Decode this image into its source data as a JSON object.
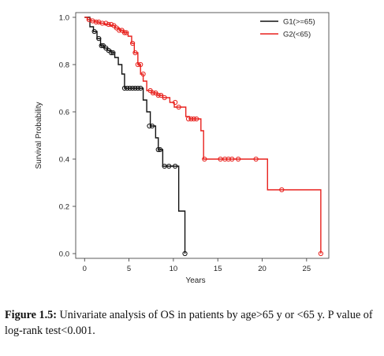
{
  "chart_data": {
    "type": "line",
    "xlabel": "Years",
    "ylabel": "Survival Probability",
    "xlim": [
      -1,
      27.5
    ],
    "ylim": [
      -0.02,
      1.02
    ],
    "xticks": [
      "0",
      "5",
      "10",
      "15",
      "20",
      "25"
    ],
    "xtick_values": [
      0,
      5,
      10,
      15,
      20,
      25
    ],
    "yticks": [
      "0.0",
      "0.2",
      "0.4",
      "0.6",
      "0.8",
      "1.0"
    ],
    "ytick_values": [
      0.0,
      0.2,
      0.4,
      0.6,
      0.8,
      1.0
    ],
    "legend_position": "top-right",
    "series": [
      {
        "name": "G1(>=65)",
        "color": "#111111",
        "steps": [
          [
            0,
            1.0
          ],
          [
            0.6,
            0.96
          ],
          [
            1.0,
            0.94
          ],
          [
            1.4,
            0.91
          ],
          [
            1.8,
            0.88
          ],
          [
            2.2,
            0.87
          ],
          [
            2.6,
            0.86
          ],
          [
            3.0,
            0.85
          ],
          [
            3.4,
            0.83
          ],
          [
            3.8,
            0.8
          ],
          [
            4.2,
            0.76
          ],
          [
            4.5,
            0.7
          ],
          [
            6.6,
            0.65
          ],
          [
            7.0,
            0.6
          ],
          [
            7.4,
            0.54
          ],
          [
            8.0,
            0.49
          ],
          [
            8.3,
            0.44
          ],
          [
            8.8,
            0.37
          ],
          [
            10.6,
            0.18
          ],
          [
            11.3,
            0.0
          ]
        ],
        "censor_x": [
          1.1,
          1.6,
          1.9,
          2.1,
          2.4,
          2.7,
          3.0,
          3.2,
          4.5,
          4.8,
          5.1,
          5.4,
          5.7,
          6.0,
          6.3,
          7.3,
          7.6,
          8.3,
          8.5,
          9.0,
          9.5,
          10.2,
          11.3
        ],
        "censor_y": [
          0.94,
          0.91,
          0.88,
          0.88,
          0.87,
          0.86,
          0.85,
          0.85,
          0.7,
          0.7,
          0.7,
          0.7,
          0.7,
          0.7,
          0.7,
          0.54,
          0.54,
          0.44,
          0.44,
          0.37,
          0.37,
          0.37,
          0.0
        ]
      },
      {
        "name": "G2(<65)",
        "color": "#e8211d",
        "steps": [
          [
            0,
            1.0
          ],
          [
            0.3,
            0.99
          ],
          [
            0.7,
            0.985
          ],
          [
            1.2,
            0.98
          ],
          [
            1.7,
            0.975
          ],
          [
            2.3,
            0.97
          ],
          [
            2.9,
            0.965
          ],
          [
            3.4,
            0.955
          ],
          [
            3.9,
            0.945
          ],
          [
            4.4,
            0.935
          ],
          [
            4.9,
            0.92
          ],
          [
            5.3,
            0.89
          ],
          [
            5.6,
            0.85
          ],
          [
            6.0,
            0.8
          ],
          [
            6.3,
            0.76
          ],
          [
            6.6,
            0.73
          ],
          [
            7.0,
            0.69
          ],
          [
            7.6,
            0.68
          ],
          [
            8.2,
            0.67
          ],
          [
            8.8,
            0.66
          ],
          [
            9.6,
            0.64
          ],
          [
            10.1,
            0.62
          ],
          [
            11.4,
            0.58
          ],
          [
            11.8,
            0.57
          ],
          [
            13.1,
            0.52
          ],
          [
            13.4,
            0.4
          ],
          [
            20.6,
            0.27
          ],
          [
            26.6,
            0.0
          ]
        ],
        "censor_x": [
          0.5,
          0.9,
          1.3,
          1.6,
          2.0,
          2.4,
          2.7,
          3.0,
          3.3,
          3.6,
          3.9,
          4.2,
          4.5,
          4.7,
          5.4,
          5.7,
          6.0,
          6.3,
          6.6,
          7.4,
          7.7,
          8.0,
          8.3,
          8.6,
          9.0,
          10.2,
          10.6,
          11.7,
          12.0,
          12.3,
          12.6,
          13.5,
          15.3,
          15.8,
          16.2,
          16.6,
          17.3,
          19.3,
          22.2,
          26.6
        ],
        "censor_y": [
          0.99,
          0.985,
          0.98,
          0.98,
          0.975,
          0.975,
          0.97,
          0.97,
          0.965,
          0.955,
          0.945,
          0.945,
          0.935,
          0.935,
          0.89,
          0.85,
          0.8,
          0.8,
          0.76,
          0.69,
          0.68,
          0.68,
          0.67,
          0.67,
          0.66,
          0.64,
          0.62,
          0.57,
          0.57,
          0.57,
          0.57,
          0.4,
          0.4,
          0.4,
          0.4,
          0.4,
          0.4,
          0.4,
          0.27,
          0.0
        ]
      }
    ]
  },
  "caption": {
    "label": "Figure 1.5:",
    "text": " Univariate analysis of OS in patients by age>65 y or <65 y. P value of log-rank test<0.001."
  }
}
